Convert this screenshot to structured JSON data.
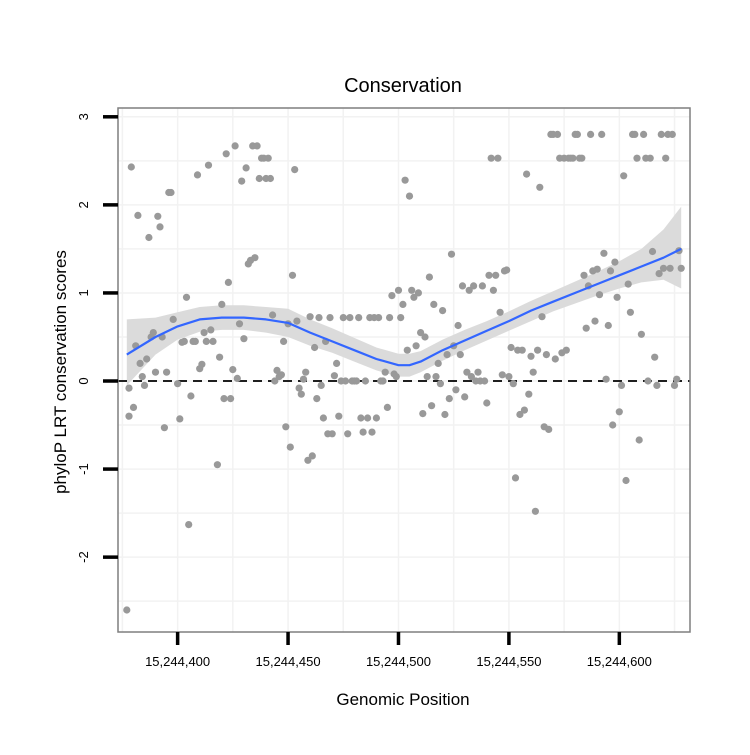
{
  "chart_data": {
    "type": "scatter",
    "title": "Conservation",
    "xlabel": "Genomic Position",
    "ylabel": "phyloP LRT conservation scores",
    "xlim": [
      15244373,
      15244632
    ],
    "ylim": [
      -2.85,
      3.1
    ],
    "x_ticks": [
      15244400,
      15244450,
      15244500,
      15244550,
      15244600
    ],
    "x_tick_labels": [
      "15,244,400",
      "15,244,450",
      "15,244,500",
      "15,244,550",
      "15,244,600"
    ],
    "y_ticks": [
      -2,
      -1,
      0,
      1,
      2,
      3
    ],
    "y_tick_labels": [
      "-2",
      "-1",
      "0",
      "1",
      "2",
      "3"
    ],
    "reference_line": {
      "y": 0,
      "style": "dashed",
      "color": "#000000"
    },
    "grid": true,
    "colors": {
      "points": "#999999",
      "smooth": "#3366ff",
      "ribbon": "#d9d9d9",
      "grid": "#f2f2f2",
      "panel_border": "#7f7f7f"
    },
    "points": [
      [
        15244377,
        -2.6
      ],
      [
        15244378,
        -0.08
      ],
      [
        15244378,
        -0.4
      ],
      [
        15244379,
        2.43
      ],
      [
        15244380,
        -0.3
      ],
      [
        15244381,
        0.4
      ],
      [
        15244382,
        1.88
      ],
      [
        15244383,
        0.2
      ],
      [
        15244384,
        0.05
      ],
      [
        15244385,
        -0.05
      ],
      [
        15244386,
        0.25
      ],
      [
        15244387,
        1.63
      ],
      [
        15244388,
        0.5
      ],
      [
        15244389,
        0.55
      ],
      [
        15244390,
        0.1
      ],
      [
        15244391,
        1.87
      ],
      [
        15244392,
        1.75
      ],
      [
        15244393,
        0.5
      ],
      [
        15244394,
        -0.53
      ],
      [
        15244395,
        0.1
      ],
      [
        15244396,
        2.14
      ],
      [
        15244397,
        2.14
      ],
      [
        15244398,
        0.7
      ],
      [
        15244400,
        -0.03
      ],
      [
        15244401,
        -0.43
      ],
      [
        15244402,
        0.44
      ],
      [
        15244403,
        0.45
      ],
      [
        15244404,
        0.95
      ],
      [
        15244405,
        -1.63
      ],
      [
        15244406,
        -0.17
      ],
      [
        15244407,
        0.45
      ],
      [
        15244408,
        0.45
      ],
      [
        15244409,
        2.34
      ],
      [
        15244410,
        0.14
      ],
      [
        15244411,
        0.19
      ],
      [
        15244412,
        0.55
      ],
      [
        15244413,
        0.45
      ],
      [
        15244414,
        2.45
      ],
      [
        15244415,
        0.58
      ],
      [
        15244416,
        0.45
      ],
      [
        15244418,
        -0.95
      ],
      [
        15244419,
        0.27
      ],
      [
        15244420,
        0.87
      ],
      [
        15244421,
        -0.2
      ],
      [
        15244422,
        2.58
      ],
      [
        15244423,
        1.12
      ],
      [
        15244424,
        -0.2
      ],
      [
        15244425,
        0.13
      ],
      [
        15244426,
        2.67
      ],
      [
        15244427,
        0.03
      ],
      [
        15244428,
        0.65
      ],
      [
        15244429,
        2.27
      ],
      [
        15244430,
        0.48
      ],
      [
        15244431,
        2.42
      ],
      [
        15244432,
        1.33
      ],
      [
        15244433,
        1.37
      ],
      [
        15244434,
        2.67
      ],
      [
        15244435,
        1.4
      ],
      [
        15244436,
        2.67
      ],
      [
        15244437,
        2.3
      ],
      [
        15244438,
        2.53
      ],
      [
        15244439,
        2.53
      ],
      [
        15244440,
        2.3
      ],
      [
        15244441,
        2.53
      ],
      [
        15244442,
        2.3
      ],
      [
        15244443,
        0.75
      ],
      [
        15244444,
        0.0
      ],
      [
        15244445,
        0.12
      ],
      [
        15244446,
        0.05
      ],
      [
        15244447,
        0.07
      ],
      [
        15244448,
        0.45
      ],
      [
        15244449,
        -0.52
      ],
      [
        15244450,
        0.65
      ],
      [
        15244451,
        -0.75
      ],
      [
        15244452,
        1.2
      ],
      [
        15244453,
        2.4
      ],
      [
        15244454,
        0.68
      ],
      [
        15244455,
        -0.08
      ],
      [
        15244456,
        -0.15
      ],
      [
        15244457,
        0.02
      ],
      [
        15244458,
        0.1
      ],
      [
        15244459,
        -0.9
      ],
      [
        15244460,
        0.73
      ],
      [
        15244461,
        -0.85
      ],
      [
        15244462,
        0.38
      ],
      [
        15244463,
        -0.2
      ],
      [
        15244464,
        0.72
      ],
      [
        15244465,
        -0.05
      ],
      [
        15244466,
        -0.42
      ],
      [
        15244467,
        0.45
      ],
      [
        15244468,
        -0.6
      ],
      [
        15244469,
        0.72
      ],
      [
        15244470,
        -0.6
      ],
      [
        15244471,
        0.06
      ],
      [
        15244472,
        0.2
      ],
      [
        15244473,
        -0.4
      ],
      [
        15244474,
        0.0
      ],
      [
        15244475,
        0.72
      ],
      [
        15244476,
        0.0
      ],
      [
        15244477,
        -0.6
      ],
      [
        15244478,
        0.72
      ],
      [
        15244479,
        0.0
      ],
      [
        15244480,
        0.0
      ],
      [
        15244481,
        0.0
      ],
      [
        15244482,
        0.72
      ],
      [
        15244483,
        -0.42
      ],
      [
        15244484,
        -0.58
      ],
      [
        15244485,
        0.0
      ],
      [
        15244486,
        -0.42
      ],
      [
        15244487,
        0.72
      ],
      [
        15244488,
        -0.58
      ],
      [
        15244489,
        0.72
      ],
      [
        15244490,
        -0.42
      ],
      [
        15244491,
        0.72
      ],
      [
        15244492,
        0.0
      ],
      [
        15244493,
        0.0
      ],
      [
        15244494,
        0.1
      ],
      [
        15244495,
        -0.3
      ],
      [
        15244496,
        0.72
      ],
      [
        15244497,
        0.97
      ],
      [
        15244498,
        0.08
      ],
      [
        15244499,
        0.05
      ],
      [
        15244500,
        1.03
      ],
      [
        15244501,
        0.72
      ],
      [
        15244502,
        0.87
      ],
      [
        15244503,
        2.28
      ],
      [
        15244504,
        0.35
      ],
      [
        15244505,
        2.1
      ],
      [
        15244506,
        1.03
      ],
      [
        15244507,
        0.95
      ],
      [
        15244508,
        0.4
      ],
      [
        15244509,
        1.0
      ],
      [
        15244510,
        0.55
      ],
      [
        15244511,
        -0.37
      ],
      [
        15244512,
        0.5
      ],
      [
        15244513,
        0.05
      ],
      [
        15244514,
        1.18
      ],
      [
        15244515,
        -0.28
      ],
      [
        15244516,
        0.87
      ],
      [
        15244517,
        0.05
      ],
      [
        15244518,
        0.2
      ],
      [
        15244519,
        -0.03
      ],
      [
        15244520,
        0.8
      ],
      [
        15244521,
        -0.38
      ],
      [
        15244522,
        0.3
      ],
      [
        15244523,
        -0.2
      ],
      [
        15244524,
        1.44
      ],
      [
        15244525,
        0.4
      ],
      [
        15244526,
        -0.1
      ],
      [
        15244527,
        0.63
      ],
      [
        15244528,
        0.3
      ],
      [
        15244529,
        1.08
      ],
      [
        15244530,
        -0.18
      ],
      [
        15244531,
        0.1
      ],
      [
        15244532,
        1.03
      ],
      [
        15244533,
        0.05
      ],
      [
        15244534,
        1.08
      ],
      [
        15244535,
        0.0
      ],
      [
        15244536,
        0.1
      ],
      [
        15244537,
        0.0
      ],
      [
        15244538,
        1.08
      ],
      [
        15244539,
        0.0
      ],
      [
        15244540,
        -0.25
      ],
      [
        15244541,
        1.2
      ],
      [
        15244542,
        2.53
      ],
      [
        15244543,
        1.03
      ],
      [
        15244544,
        1.2
      ],
      [
        15244545,
        2.53
      ],
      [
        15244546,
        0.78
      ],
      [
        15244547,
        0.07
      ],
      [
        15244548,
        1.25
      ],
      [
        15244549,
        1.26
      ],
      [
        15244550,
        0.05
      ],
      [
        15244551,
        0.38
      ],
      [
        15244552,
        -0.03
      ],
      [
        15244553,
        -1.1
      ],
      [
        15244554,
        0.35
      ],
      [
        15244555,
        -0.38
      ],
      [
        15244556,
        0.35
      ],
      [
        15244557,
        -0.33
      ],
      [
        15244558,
        2.35
      ],
      [
        15244559,
        -0.15
      ],
      [
        15244560,
        0.28
      ],
      [
        15244561,
        0.1
      ],
      [
        15244562,
        -1.48
      ],
      [
        15244563,
        0.35
      ],
      [
        15244564,
        2.2
      ],
      [
        15244565,
        0.73
      ],
      [
        15244566,
        -0.52
      ],
      [
        15244567,
        0.3
      ],
      [
        15244568,
        -0.55
      ],
      [
        15244569,
        2.8
      ],
      [
        15244570,
        2.8
      ],
      [
        15244571,
        0.25
      ],
      [
        15244572,
        2.8
      ],
      [
        15244573,
        2.53
      ],
      [
        15244574,
        0.32
      ],
      [
        15244575,
        2.53
      ],
      [
        15244576,
        0.35
      ],
      [
        15244577,
        2.53
      ],
      [
        15244578,
        2.53
      ],
      [
        15244579,
        2.53
      ],
      [
        15244580,
        2.8
      ],
      [
        15244581,
        2.8
      ],
      [
        15244582,
        2.53
      ],
      [
        15244583,
        2.53
      ],
      [
        15244584,
        1.2
      ],
      [
        15244585,
        0.6
      ],
      [
        15244586,
        1.08
      ],
      [
        15244587,
        2.8
      ],
      [
        15244588,
        1.25
      ],
      [
        15244589,
        0.68
      ],
      [
        15244590,
        1.27
      ],
      [
        15244591,
        0.98
      ],
      [
        15244592,
        2.8
      ],
      [
        15244593,
        1.45
      ],
      [
        15244594,
        0.02
      ],
      [
        15244595,
        0.63
      ],
      [
        15244596,
        1.25
      ],
      [
        15244597,
        -0.5
      ],
      [
        15244598,
        1.35
      ],
      [
        15244599,
        0.95
      ],
      [
        15244600,
        -0.35
      ],
      [
        15244601,
        -0.05
      ],
      [
        15244602,
        2.33
      ],
      [
        15244603,
        -1.13
      ],
      [
        15244604,
        1.1
      ],
      [
        15244605,
        0.78
      ],
      [
        15244606,
        2.8
      ],
      [
        15244607,
        2.8
      ],
      [
        15244608,
        2.53
      ],
      [
        15244609,
        -0.67
      ],
      [
        15244610,
        0.53
      ],
      [
        15244611,
        2.8
      ],
      [
        15244612,
        2.53
      ],
      [
        15244613,
        0.0
      ],
      [
        15244614,
        2.53
      ],
      [
        15244615,
        1.47
      ],
      [
        15244616,
        0.27
      ],
      [
        15244617,
        -0.05
      ],
      [
        15244618,
        1.22
      ],
      [
        15244619,
        2.8
      ],
      [
        15244620,
        1.28
      ],
      [
        15244621,
        2.53
      ],
      [
        15244622,
        2.8
      ],
      [
        15244623,
        1.28
      ],
      [
        15244624,
        2.8
      ],
      [
        15244625,
        -0.05
      ],
      [
        15244626,
        0.02
      ],
      [
        15244627,
        1.48
      ],
      [
        15244628,
        1.28
      ]
    ],
    "smooth": {
      "method": "loess",
      "x": [
        15244377,
        15244390,
        15244400,
        15244410,
        15244420,
        15244430,
        15244440,
        15244450,
        15244460,
        15244470,
        15244480,
        15244490,
        15244500,
        15244505,
        15244510,
        15244520,
        15244530,
        15244540,
        15244550,
        15244560,
        15244570,
        15244580,
        15244590,
        15244600,
        15244610,
        15244620,
        15244628
      ],
      "y": [
        0.3,
        0.5,
        0.62,
        0.7,
        0.72,
        0.72,
        0.7,
        0.66,
        0.55,
        0.45,
        0.35,
        0.25,
        0.18,
        0.18,
        0.22,
        0.35,
        0.46,
        0.57,
        0.68,
        0.8,
        0.9,
        1.0,
        1.1,
        1.2,
        1.3,
        1.4,
        1.5
      ],
      "ci_lower": [
        -0.05,
        0.3,
        0.47,
        0.56,
        0.58,
        0.58,
        0.55,
        0.5,
        0.4,
        0.32,
        0.22,
        0.12,
        0.05,
        0.05,
        0.1,
        0.23,
        0.35,
        0.46,
        0.57,
        0.68,
        0.79,
        0.88,
        0.97,
        1.05,
        1.12,
        1.15,
        1.05
      ],
      "ci_upper": [
        0.7,
        0.72,
        0.78,
        0.84,
        0.86,
        0.86,
        0.84,
        0.82,
        0.7,
        0.6,
        0.49,
        0.38,
        0.31,
        0.31,
        0.34,
        0.47,
        0.58,
        0.68,
        0.79,
        0.91,
        1.02,
        1.13,
        1.24,
        1.36,
        1.5,
        1.72,
        1.98
      ]
    }
  }
}
